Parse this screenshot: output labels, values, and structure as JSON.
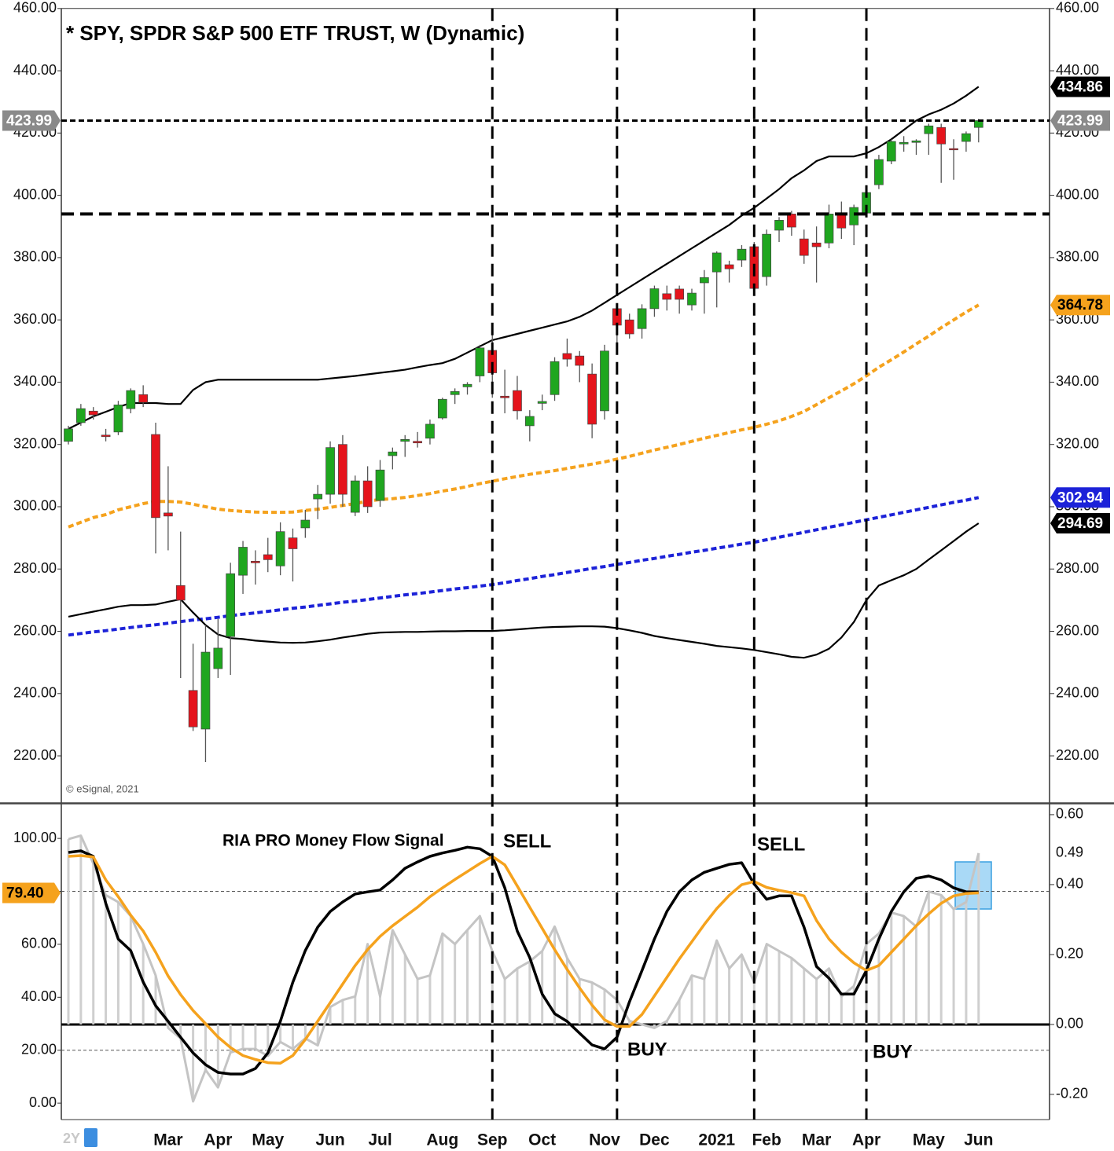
{
  "chart_data": [
    {
      "type": "candlestick",
      "title": "* SPY, SPDR S&P 500 ETF TRUST, W (Dynamic)",
      "credit": "© eSignal, 2021",
      "open": [
        321,
        327,
        330.7,
        323,
        324,
        331.5,
        336,
        323.2,
        298,
        274.7,
        241,
        228.6,
        248,
        258.3,
        278,
        282.5,
        284.6,
        281,
        290,
        293.2,
        302.5,
        304,
        320,
        298.2,
        308.3,
        302,
        316.4,
        321,
        321,
        322,
        328.5,
        336,
        338.5,
        342,
        350.2,
        335.5,
        337.3,
        326,
        333.2,
        336,
        349.2,
        348.4,
        342.6,
        330.8,
        363.6,
        360,
        357.2,
        363.6,
        368.4,
        369.9,
        364.8,
        371.9,
        375.4,
        377.7,
        379.2,
        383.5,
        373.9,
        388.8,
        394,
        386,
        384.7,
        384.7,
        394,
        390.5,
        394.3,
        403.4,
        411,
        416.5,
        417,
        419.8,
        421.8,
        415,
        417.3,
        421.8
      ],
      "high": [
        326,
        333,
        332,
        325,
        334,
        338,
        339,
        327,
        313,
        292,
        256,
        262,
        264,
        282,
        289,
        286,
        290,
        295,
        293,
        299,
        307,
        321,
        323,
        310,
        313,
        315,
        319,
        323,
        324,
        328,
        335,
        338,
        340,
        352,
        358.8,
        344,
        342,
        331,
        336,
        348,
        354,
        350,
        346,
        352,
        364.5,
        362,
        365,
        371,
        371,
        371,
        370,
        376,
        382,
        379,
        384,
        385,
        389,
        393,
        395,
        389,
        390,
        397,
        398,
        397,
        401.5,
        413,
        418,
        419,
        418,
        423,
        423,
        418,
        420.5,
        424.5
      ],
      "low": [
        320,
        326,
        328,
        321,
        323,
        330,
        332,
        285,
        286,
        245,
        228,
        218,
        245,
        246,
        272,
        275,
        279,
        278,
        276,
        290,
        296,
        301,
        300,
        297,
        298,
        300,
        312,
        316,
        319,
        320,
        328,
        333,
        336,
        340,
        335,
        330,
        328,
        321,
        331,
        334,
        345,
        340,
        322,
        328,
        350,
        354,
        354,
        361,
        363,
        362,
        363,
        362,
        364,
        372,
        377,
        368,
        371,
        385,
        387,
        378,
        372,
        383,
        386,
        384,
        393,
        402,
        410,
        414,
        413,
        413,
        404,
        405,
        414,
        417
      ],
      "close": [
        325,
        331.5,
        329.5,
        322.5,
        332.7,
        337.3,
        333.5,
        296.5,
        297,
        270,
        229.3,
        253.3,
        254.6,
        278.5,
        287,
        282,
        283,
        292,
        286.5,
        295.7,
        304,
        319,
        304,
        308.3,
        300,
        311.8,
        317.6,
        321.6,
        320.5,
        326.5,
        334.5,
        337,
        339.3,
        351,
        343,
        335,
        330.8,
        329,
        333.8,
        346.6,
        347.4,
        345.4,
        326.5,
        350,
        358.3,
        355.5,
        363.6,
        370,
        366.6,
        366.6,
        368.6,
        373.6,
        381.5,
        376.4,
        382.7,
        370.1,
        387.5,
        392,
        389.8,
        380.7,
        383.5,
        394,
        389.5,
        396.1,
        400.9,
        411.5,
        417.3,
        417,
        417.5,
        422.3,
        416.5,
        414.6,
        419.8,
        423.99
      ],
      "up_color": "#1fa61f",
      "down_color": "#e5141c",
      "series": [
        {
          "color": "#000000",
          "dashed": false,
          "values": [
            325,
            327,
            329,
            330.5,
            332,
            333.3,
            333.3,
            333.3,
            333,
            333,
            337.5,
            340,
            340.8,
            340.8,
            340.8,
            340.8,
            340.8,
            340.8,
            340.8,
            340.8,
            340.8,
            341.2,
            341.6,
            342,
            342.5,
            343,
            343.5,
            344,
            344.8,
            345.5,
            346.1,
            347.5,
            349.5,
            351.5,
            353.5,
            354.5,
            355.5,
            356.5,
            357.5,
            358.5,
            359.5,
            361,
            363,
            365.5,
            368,
            370.5,
            373,
            375.5,
            378,
            380.5,
            383,
            385.5,
            388,
            390.5,
            393.5,
            396,
            399,
            402,
            405.5,
            408,
            411,
            412.5,
            412.5,
            412.5,
            413.5,
            415.5,
            418,
            421,
            424,
            426,
            427.5,
            429.5,
            432,
            434.86
          ]
        },
        {
          "color": "#f5a21d",
          "dashed": true,
          "values": [
            293.5,
            295,
            296.5,
            297.5,
            299,
            300,
            301,
            301.7,
            301.7,
            301.5,
            300.8,
            300,
            299.2,
            298.8,
            298.5,
            298.3,
            298.2,
            298.2,
            298.3,
            298.8,
            299.2,
            299.8,
            300.4,
            301,
            301.8,
            302.3,
            302.6,
            303,
            303.6,
            304.2,
            305,
            305.7,
            306.5,
            307.4,
            308.2,
            309,
            309.7,
            310.4,
            311,
            311.6,
            312.3,
            313,
            313.7,
            314.4,
            315.3,
            316.2,
            317.2,
            318.2,
            319.1,
            320,
            321,
            322,
            322.9,
            323.8,
            324.7,
            325.5,
            326.5,
            327.6,
            329,
            330.6,
            332.8,
            335,
            337.2,
            339.5,
            342,
            344.8,
            347.2,
            349.7,
            352.3,
            354.8,
            357.5,
            360,
            362.5,
            364.78
          ]
        },
        {
          "color": "#1c22d8",
          "dashed": true,
          "values": [
            258.8,
            259.3,
            259.8,
            260.2,
            260.7,
            261.2,
            261.7,
            262.1,
            262.6,
            263.1,
            263.6,
            264.0,
            264.5,
            265.0,
            265.5,
            265.9,
            266.4,
            266.9,
            267.4,
            267.8,
            268.3,
            268.8,
            269.3,
            269.7,
            270.2,
            270.7,
            271.2,
            271.7,
            272.1,
            272.6,
            273.1,
            273.6,
            274.0,
            274.5,
            275.0,
            275.6,
            276.3,
            276.9,
            277.6,
            278.2,
            278.9,
            279.5,
            280.2,
            280.8,
            281.5,
            282.1,
            282.8,
            283.4,
            284.1,
            284.7,
            285.4,
            286.0,
            286.7,
            287.3,
            288.0,
            288.6,
            289.4,
            290.2,
            291.0,
            291.8,
            292.6,
            293.4,
            294.2,
            295.0,
            295.8,
            296.6,
            297.4,
            298.2,
            299.0,
            299.8,
            300.6,
            301.4,
            302.1,
            302.94
          ]
        },
        {
          "color": "#000000",
          "dashed": false,
          "values": [
            264.7,
            265.5,
            266.3,
            267.1,
            267.9,
            268.4,
            268.4,
            268.6,
            269.5,
            270.3,
            266,
            262,
            259,
            257.8,
            257.5,
            257,
            256.7,
            256.4,
            256.3,
            256.4,
            256.8,
            257.3,
            258,
            258.6,
            259.2,
            259.6,
            259.7,
            259.8,
            259.8,
            259.9,
            260,
            260,
            260.1,
            260.1,
            260.1,
            260.3,
            260.6,
            260.9,
            261.2,
            261.4,
            261.5,
            261.6,
            261.6,
            261.5,
            261,
            260.3,
            259.5,
            258.5,
            257.8,
            257.2,
            256.6,
            256,
            255.3,
            254.9,
            254.5,
            254,
            253.3,
            252.6,
            251.8,
            251.5,
            252.5,
            254.4,
            258,
            263,
            270,
            274.7,
            276.4,
            278,
            280,
            283,
            286,
            289,
            292,
            294.69
          ]
        }
      ],
      "last_price": 423.99,
      "levels": [
        394
      ],
      "ylim": [
        205,
        460
      ],
      "yticks": [
        {
          "value": 220,
          "label": "220.00"
        },
        {
          "value": 240,
          "label": "240.00"
        },
        {
          "value": 260,
          "label": "260.00"
        },
        {
          "value": 280,
          "label": "280.00"
        },
        {
          "value": 300,
          "label": "300.00"
        },
        {
          "value": 320,
          "label": "320.00"
        },
        {
          "value": 340,
          "label": "340.00"
        },
        {
          "value": 360,
          "label": "360.00"
        },
        {
          "value": 380,
          "label": "380.00"
        },
        {
          "value": 400,
          "label": "400.00"
        },
        {
          "value": 420,
          "label": "420.00"
        },
        {
          "value": 440,
          "label": "440.00"
        },
        {
          "value": 460,
          "label": "460.00"
        }
      ]
    },
    {
      "type": "line",
      "title": "RIA PRO Money Flow Signal",
      "range_button": "2Y",
      "annotations": [
        "SELL",
        "BUY",
        "SELL",
        "BUY"
      ],
      "categories": [
        null,
        null,
        null,
        null,
        null,
        null,
        null,
        null,
        "Mar",
        null,
        null,
        null,
        "Apr",
        null,
        null,
        null,
        "May",
        null,
        null,
        null,
        null,
        "Jun",
        null,
        null,
        null,
        "Jul",
        null,
        null,
        null,
        null,
        "Aug",
        null,
        null,
        null,
        "Sep",
        null,
        null,
        null,
        "Oct",
        null,
        null,
        null,
        null,
        "Nov",
        null,
        null,
        null,
        "Dec",
        null,
        null,
        null,
        null,
        "2021",
        null,
        null,
        null,
        "Feb",
        null,
        null,
        null,
        "Mar",
        null,
        null,
        null,
        "Apr",
        null,
        null,
        null,
        null,
        "May",
        null,
        null,
        null,
        "Jun"
      ],
      "series": [
        {
          "type": "bar",
          "axis": "y2",
          "color": "#cfcfcf",
          "values": [
            0.53,
            0.54,
            0.46,
            0.37,
            0.35,
            0.31,
            0.23,
            0.14,
            -0.01,
            -0.04,
            -0.22,
            -0.13,
            -0.18,
            -0.08,
            -0.07,
            -0.07,
            -0.09,
            -0.05,
            -0.07,
            -0.04,
            -0.06,
            0.05,
            0.07,
            0.08,
            0.23,
            0.08,
            0.27,
            0.2,
            0.13,
            0.14,
            0.26,
            0.23,
            0.27,
            0.31,
            0.21,
            0.13,
            0.16,
            0.18,
            0.21,
            0.28,
            0.19,
            0.13,
            0.12,
            0.1,
            0.07,
            0.01,
            0,
            -0.01,
            0.01,
            0.07,
            0.14,
            0.13,
            0.24,
            0.16,
            0.2,
            0.12,
            0.23,
            0.21,
            0.19,
            0.16,
            0.13,
            0.16,
            0.08,
            0.11,
            0.23,
            0.26,
            0.32,
            0.31,
            0.28,
            0.38,
            0.37,
            0.33,
            0.35,
            0.49
          ]
        },
        {
          "color": "#000000",
          "values": [
            94.7,
            95.3,
            93.2,
            75.4,
            62,
            57.6,
            45.7,
            36.8,
            30.9,
            24.9,
            19,
            14.5,
            11.6,
            11,
            11,
            13.1,
            19,
            30.9,
            45.7,
            57.6,
            66.5,
            72.4,
            76,
            79,
            79.8,
            80.5,
            84.3,
            88.7,
            91.1,
            93.2,
            94.5,
            95.5,
            96.7,
            96.1,
            93.2,
            81.3,
            65,
            55,
            41.2,
            33.8,
            30.9,
            26.4,
            22,
            20.5,
            24.9,
            38.3,
            50.1,
            62,
            72.4,
            79.8,
            84.3,
            87.2,
            88.7,
            90.2,
            90.8,
            82.8,
            77,
            78.3,
            78.3,
            66.5,
            51.6,
            47.2,
            41.2,
            41.2,
            50.1,
            62,
            72.4,
            79.8,
            84.9,
            85.8,
            84.3,
            81.3,
            79.8,
            79.8
          ]
        },
        {
          "color": "#f5a21d",
          "values": [
            93.2,
            93.5,
            93,
            84.3,
            78,
            71,
            65,
            57,
            48,
            41,
            35,
            30,
            25,
            21,
            18,
            16.5,
            15.3,
            15.1,
            18,
            24,
            31,
            38,
            45,
            52,
            58,
            63,
            67,
            70.5,
            74,
            78,
            81.3,
            84.5,
            87.5,
            90.5,
            93.2,
            90,
            82,
            74,
            66,
            58,
            50.5,
            43.5,
            37,
            31.5,
            29,
            29,
            33.5,
            40.5,
            47.5,
            54.5,
            61,
            67.5,
            73.5,
            78.5,
            82.5,
            83.7,
            81.5,
            80.4,
            79.5,
            78.3,
            69,
            62,
            57,
            53,
            50.1,
            52,
            57,
            62,
            67,
            71.5,
            75.5,
            78.3,
            79.2,
            79.4
          ],
          "value_labels": [
            null,
            null,
            null,
            null,
            null,
            null,
            null,
            null,
            null,
            null,
            null,
            null,
            null,
            null,
            null,
            null,
            null,
            null,
            null,
            null,
            null,
            null,
            null,
            null,
            null,
            null,
            null,
            null,
            null,
            null,
            null,
            null,
            null,
            null,
            null,
            null,
            null,
            null,
            null,
            null,
            null,
            null,
            null,
            null,
            null,
            null,
            null,
            null,
            null,
            null,
            null,
            null,
            null,
            null,
            null,
            null,
            null,
            null,
            null,
            null,
            null,
            null,
            null,
            null,
            null,
            null,
            null,
            null,
            null,
            null,
            null,
            null,
            null,
            "79.40"
          ]
        }
      ],
      "levels": [
        80,
        20
      ],
      "ylim": [
        -6.2,
        112.8
      ],
      "yticks": [
        {
          "value": 0,
          "label": "0.00"
        },
        {
          "value": 20,
          "label": "20.00"
        },
        {
          "value": 40,
          "label": "40.00"
        },
        {
          "value": 60,
          "label": "60.00"
        },
        {
          "value": 80,
          "label": "80.00"
        },
        {
          "value": 100,
          "label": "100.00"
        }
      ],
      "y2lim": [
        -0.272,
        0.629
      ],
      "y2ticks": [
        {
          "value": -0.2,
          "label": "-0.20"
        },
        {
          "value": 0,
          "label": "0.00"
        },
        {
          "value": 0.2,
          "label": "0.20"
        },
        {
          "value": 0.4,
          "label": "0.40"
        },
        {
          "value": 0.6,
          "label": "0.60"
        }
      ]
    }
  ]
}
